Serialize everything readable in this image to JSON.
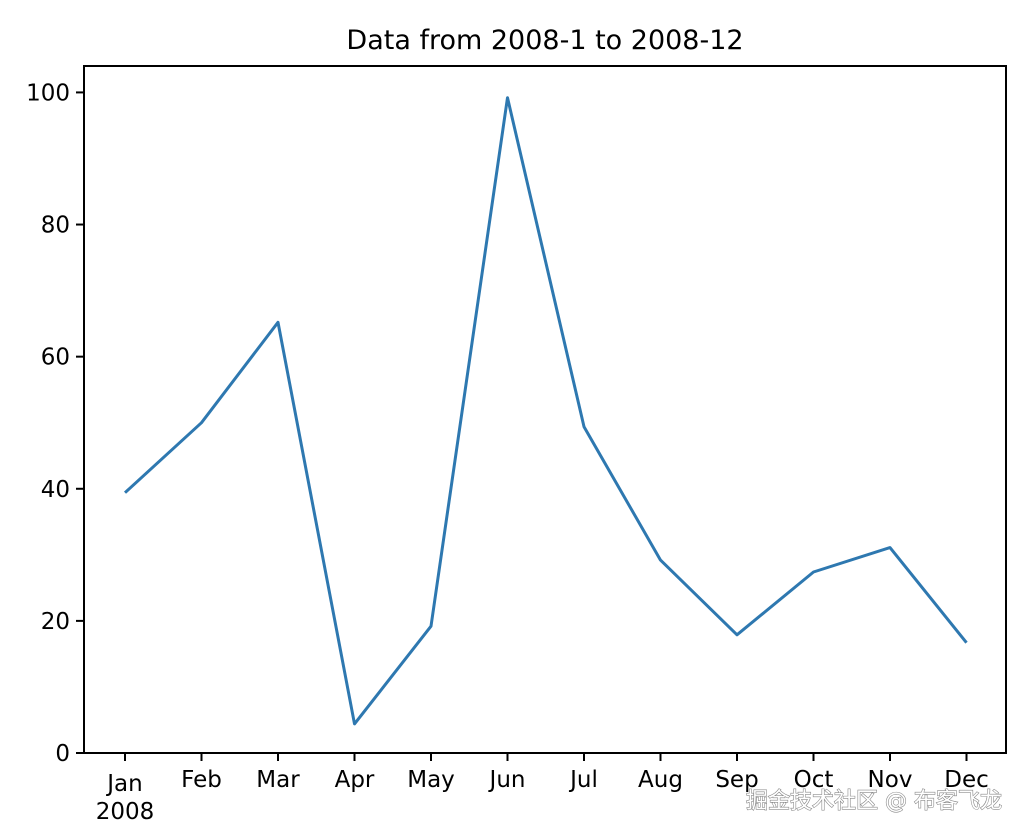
{
  "chart_data": {
    "type": "line",
    "title": "Data from 2008-1 to 2008-12",
    "xlabel": "",
    "ylabel": "",
    "categories": [
      "Jan",
      "Feb",
      "Mar",
      "Apr",
      "May",
      "Jun",
      "Jul",
      "Aug",
      "Sep",
      "Oct",
      "Nov",
      "Dec"
    ],
    "year_label": "2008",
    "series": [
      {
        "values": [
          39.4,
          50.0,
          65.2,
          4.4,
          19.2,
          99.2,
          49.4,
          29.2,
          17.9,
          27.4,
          31.1,
          16.7
        ]
      }
    ],
    "ylim": [
      0,
      104
    ],
    "yticks": [
      0,
      20,
      40,
      60,
      80,
      100
    ],
    "grid": false,
    "legend": "none",
    "line_color": "#2e78b0"
  },
  "watermark": {
    "text": "掘金技术社区 @ 布客飞龙"
  }
}
